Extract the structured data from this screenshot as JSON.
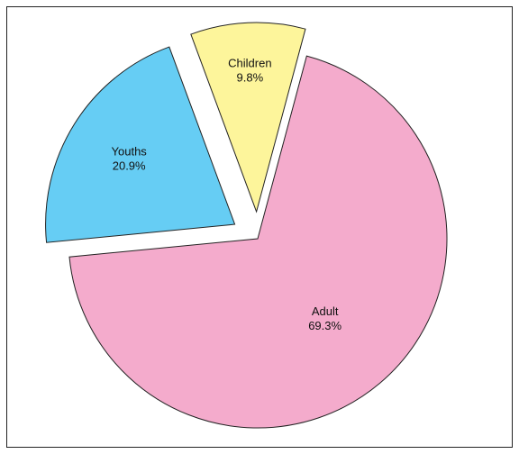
{
  "chart_data": {
    "type": "pie",
    "title": "",
    "slices": [
      {
        "label": "Adult",
        "value": 69.3,
        "value_label": "69.3%",
        "color": "#f4abcc",
        "exploded": false
      },
      {
        "label": "Youths",
        "value": 20.9,
        "value_label": "20.9%",
        "color": "#66cdf4",
        "exploded": true
      },
      {
        "label": "Children",
        "value": 9.8,
        "value_label": "9.8%",
        "color": "#fdf59b",
        "exploded": true
      }
    ],
    "legend": "none"
  }
}
